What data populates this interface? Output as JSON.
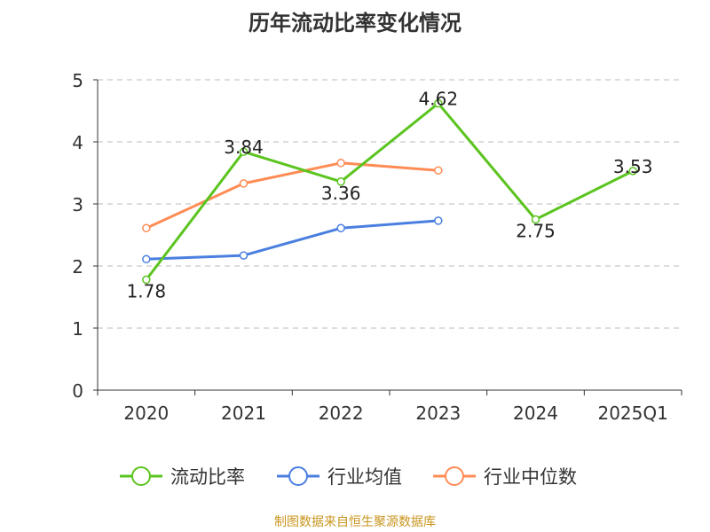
{
  "chart_data": {
    "type": "line",
    "title": "历年流动比率变化情况",
    "categories": [
      "2020",
      "2021",
      "2022",
      "2023",
      "2024",
      "2025Q1"
    ],
    "ylim": [
      0,
      5
    ],
    "yticks": [
      "0",
      "1",
      "2",
      "3",
      "4",
      "5"
    ],
    "grid": true,
    "legend_position": "bottom",
    "series": [
      {
        "name": "流动比率",
        "color": "#5bc41f",
        "values": [
          1.78,
          3.84,
          3.36,
          4.62,
          2.75,
          3.53
        ],
        "labels": [
          "1.78",
          "3.84",
          "3.36",
          "4.62",
          "2.75",
          "3.53"
        ]
      },
      {
        "name": "行业均值",
        "color": "#4a7fe0",
        "values": [
          2.11,
          2.17,
          2.61,
          2.73,
          null,
          null
        ]
      },
      {
        "name": "行业中位数",
        "color": "#ff8c55",
        "values": [
          2.61,
          3.33,
          3.66,
          3.54,
          null,
          null
        ]
      }
    ]
  },
  "footer": "制图数据来自恒生聚源数据库"
}
